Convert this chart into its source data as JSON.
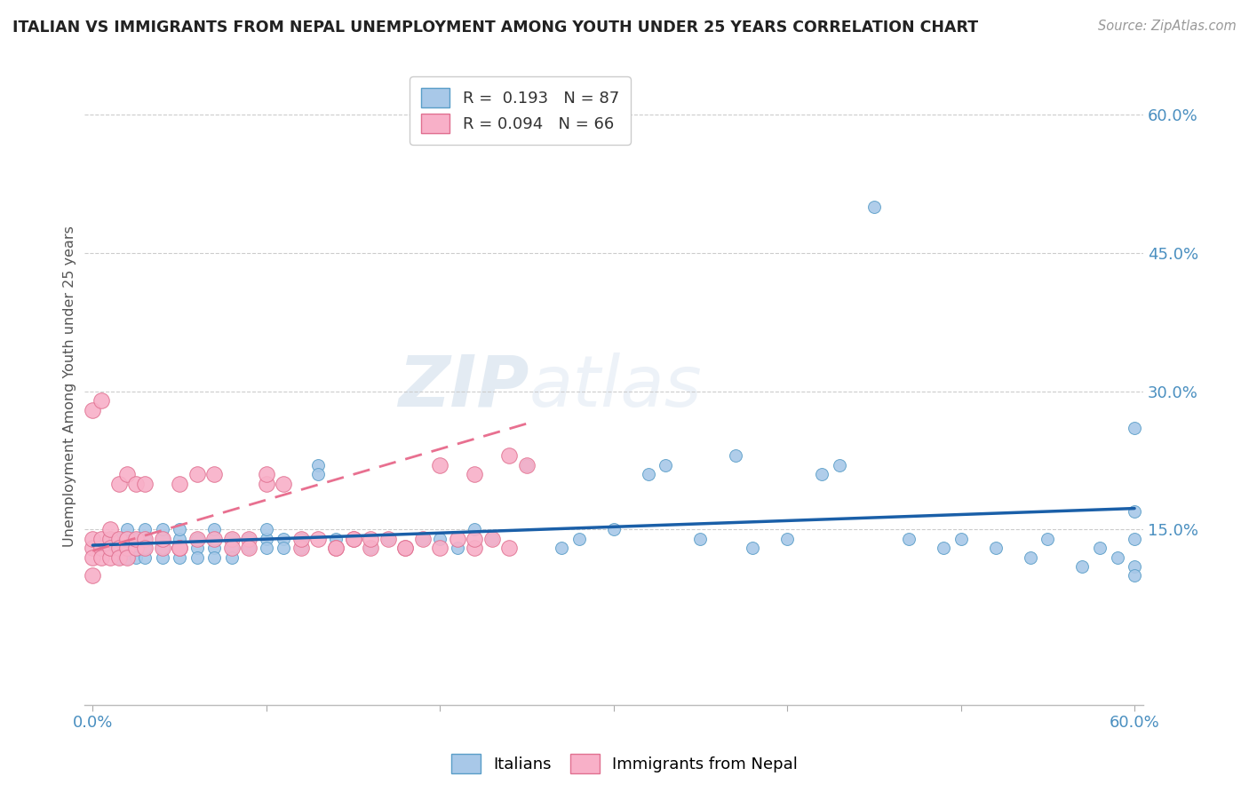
{
  "title": "ITALIAN VS IMMIGRANTS FROM NEPAL UNEMPLOYMENT AMONG YOUTH UNDER 25 YEARS CORRELATION CHART",
  "source": "Source: ZipAtlas.com",
  "ylabel": "Unemployment Among Youth under 25 years",
  "xlim": [
    -0.005,
    0.605
  ],
  "ylim": [
    -0.04,
    0.65
  ],
  "xtick_vals": [
    0.0,
    0.1,
    0.2,
    0.3,
    0.4,
    0.5,
    0.6
  ],
  "xticklabels": [
    "0.0%",
    "",
    "",
    "",
    "",
    "",
    "60.0%"
  ],
  "ytick_vals": [
    0.15,
    0.3,
    0.45,
    0.6
  ],
  "ytick_labels": [
    "15.0%",
    "30.0%",
    "45.0%",
    "60.0%"
  ],
  "italian_color": "#a8c8e8",
  "italian_edge": "#5a9ec8",
  "nepal_color": "#f8b0c8",
  "nepal_edge": "#e07090",
  "trend_it_color": "#1a5fa8",
  "trend_np_color": "#e87090",
  "watermark_color": "#e0e8f0",
  "background": "#ffffff",
  "it_x": [
    0.005,
    0.01,
    0.01,
    0.015,
    0.015,
    0.015,
    0.02,
    0.02,
    0.02,
    0.02,
    0.025,
    0.025,
    0.025,
    0.03,
    0.03,
    0.03,
    0.03,
    0.03,
    0.04,
    0.04,
    0.04,
    0.04,
    0.04,
    0.05,
    0.05,
    0.05,
    0.05,
    0.06,
    0.06,
    0.06,
    0.06,
    0.07,
    0.07,
    0.07,
    0.07,
    0.08,
    0.08,
    0.08,
    0.09,
    0.09,
    0.1,
    0.1,
    0.1,
    0.11,
    0.11,
    0.12,
    0.12,
    0.13,
    0.13,
    0.14,
    0.14,
    0.15,
    0.16,
    0.17,
    0.18,
    0.19,
    0.2,
    0.21,
    0.22,
    0.23,
    0.25,
    0.27,
    0.28,
    0.3,
    0.32,
    0.33,
    0.35,
    0.37,
    0.38,
    0.4,
    0.42,
    0.43,
    0.45,
    0.47,
    0.49,
    0.5,
    0.52,
    0.54,
    0.55,
    0.57,
    0.58,
    0.59,
    0.6,
    0.6,
    0.6,
    0.6,
    0.6
  ],
  "it_y": [
    0.13,
    0.13,
    0.14,
    0.12,
    0.13,
    0.14,
    0.13,
    0.14,
    0.12,
    0.15,
    0.13,
    0.12,
    0.14,
    0.13,
    0.14,
    0.12,
    0.15,
    0.13,
    0.14,
    0.13,
    0.12,
    0.15,
    0.13,
    0.14,
    0.13,
    0.12,
    0.15,
    0.14,
    0.13,
    0.12,
    0.14,
    0.13,
    0.14,
    0.12,
    0.15,
    0.14,
    0.13,
    0.12,
    0.14,
    0.13,
    0.14,
    0.13,
    0.15,
    0.14,
    0.13,
    0.14,
    0.13,
    0.22,
    0.21,
    0.13,
    0.14,
    0.14,
    0.13,
    0.14,
    0.13,
    0.14,
    0.14,
    0.13,
    0.15,
    0.14,
    0.22,
    0.13,
    0.14,
    0.15,
    0.21,
    0.22,
    0.14,
    0.23,
    0.13,
    0.14,
    0.21,
    0.22,
    0.5,
    0.14,
    0.13,
    0.14,
    0.13,
    0.12,
    0.14,
    0.11,
    0.13,
    0.12,
    0.26,
    0.17,
    0.14,
    0.11,
    0.1
  ],
  "np_x": [
    0.0,
    0.0,
    0.0,
    0.0,
    0.0,
    0.005,
    0.005,
    0.005,
    0.005,
    0.01,
    0.01,
    0.01,
    0.01,
    0.015,
    0.015,
    0.015,
    0.015,
    0.02,
    0.02,
    0.02,
    0.02,
    0.025,
    0.025,
    0.025,
    0.03,
    0.03,
    0.03,
    0.04,
    0.04,
    0.05,
    0.05,
    0.06,
    0.06,
    0.07,
    0.08,
    0.08,
    0.09,
    0.1,
    0.11,
    0.12,
    0.13,
    0.14,
    0.15,
    0.16,
    0.17,
    0.18,
    0.19,
    0.2,
    0.21,
    0.22,
    0.23,
    0.24,
    0.25,
    0.1,
    0.15,
    0.18,
    0.22,
    0.05,
    0.07,
    0.09,
    0.12,
    0.14,
    0.16,
    0.2,
    0.22,
    0.24
  ],
  "np_y": [
    0.13,
    0.14,
    0.28,
    0.12,
    0.1,
    0.13,
    0.14,
    0.12,
    0.29,
    0.12,
    0.14,
    0.13,
    0.15,
    0.14,
    0.2,
    0.13,
    0.12,
    0.14,
    0.21,
    0.13,
    0.12,
    0.13,
    0.2,
    0.14,
    0.14,
    0.2,
    0.13,
    0.13,
    0.14,
    0.2,
    0.13,
    0.14,
    0.21,
    0.21,
    0.14,
    0.13,
    0.14,
    0.2,
    0.2,
    0.13,
    0.14,
    0.13,
    0.14,
    0.13,
    0.14,
    0.13,
    0.14,
    0.13,
    0.14,
    0.13,
    0.14,
    0.13,
    0.22,
    0.21,
    0.14,
    0.13,
    0.14,
    0.13,
    0.14,
    0.13,
    0.14,
    0.13,
    0.14,
    0.22,
    0.21,
    0.23
  ],
  "it_trend_x": [
    0.0,
    0.6
  ],
  "it_trend_y": [
    0.133,
    0.173
  ],
  "np_trend_x": [
    0.0,
    0.25
  ],
  "np_trend_y": [
    0.127,
    0.265
  ]
}
